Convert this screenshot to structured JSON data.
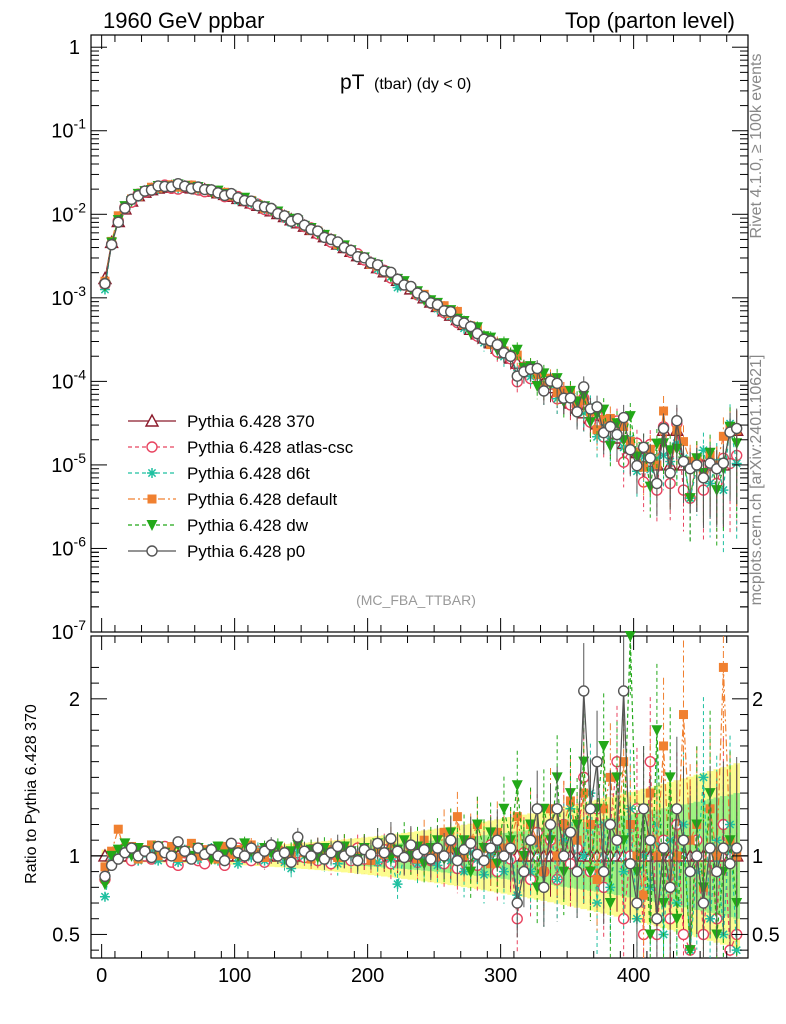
{
  "header": {
    "left": "1960 GeV ppbar",
    "right": "Top (parton level)"
  },
  "side": {
    "rivet": "Rivet 4.1.0, ≥ 100k events",
    "mcplots": "mcplots.cern.ch [arXiv:2401.10621]"
  },
  "chart_data": {
    "type": "line",
    "title_main": "pT",
    "title_sub": "(tbar) (dy < 0)",
    "analysis": "(MC_FBA_TTBAR)",
    "xlabel": "",
    "ylabel_ratio": "Ratio to Pythia 6.428 370",
    "xlim": [
      -8,
      486
    ],
    "xticks": [
      0,
      100,
      200,
      300,
      400
    ],
    "ylim_main": [
      1e-07,
      1.4
    ],
    "yticks_main": [
      "1",
      "10^-1",
      "10^-2",
      "10^-3",
      "10^-4",
      "10^-5",
      "10^-6",
      "10^-7"
    ],
    "ylim_ratio": [
      0.35,
      2.4
    ],
    "yticks_ratio": [
      0.5,
      1,
      2
    ],
    "reference_x": [
      2.5,
      7.5,
      12.5,
      17.5,
      22.5,
      27.5,
      32.5,
      37.5,
      42.5,
      47.5,
      52.5,
      57.5,
      62.5,
      67.5,
      72.5,
      77.5,
      82.5,
      87.5,
      92.5,
      97.5,
      102.5,
      107.5,
      112.5,
      117.5,
      122.5,
      127.5,
      132.5,
      137.5,
      142.5,
      147.5,
      152.5,
      157.5,
      162.5,
      167.5,
      172.5,
      177.5,
      182.5,
      187.5,
      192.5,
      197.5,
      202.5,
      207.5,
      212.5,
      217.5,
      222.5,
      227.5,
      232.5,
      237.5,
      242.5,
      247.5,
      252.5,
      257.5,
      262.5,
      267.5,
      272.5,
      277.5,
      282.5,
      287.5,
      292.5,
      297.5,
      302.5,
      307.5,
      312.5,
      317.5,
      322.5,
      327.5,
      332.5,
      337.5,
      342.5,
      347.5,
      352.5,
      357.5,
      362.5,
      367.5,
      372.5,
      377.5,
      382.5,
      387.5,
      392.5,
      397.5,
      402.5,
      407.5,
      412.5,
      417.5,
      422.5,
      427.5,
      432.5,
      437.5,
      442.5,
      447.5,
      452.5,
      457.5,
      462.5,
      467.5,
      472.5,
      477.5
    ],
    "reference_y": [
      0.0017,
      0.0046,
      0.0082,
      0.0116,
      0.0144,
      0.0167,
      0.0184,
      0.0197,
      0.0206,
      0.0211,
      0.0213,
      0.0213,
      0.0211,
      0.0207,
      0.0202,
      0.0196,
      0.0189,
      0.0181,
      0.0173,
      0.0164,
      0.0155,
      0.0146,
      0.0137,
      0.0128,
      0.0119,
      0.011,
      0.0102,
      0.0094,
      0.0086,
      0.0079,
      0.0072,
      0.0066,
      0.006,
      0.0054,
      0.0049,
      0.0044,
      0.004,
      0.0036,
      0.0032,
      0.0029,
      0.0026,
      0.0023,
      0.00205,
      0.00182,
      0.00162,
      0.00144,
      0.00128,
      0.00113,
      0.001,
      0.00089,
      0.00079,
      0.0007,
      0.00062,
      0.00055,
      0.00048,
      0.00042,
      0.00037,
      0.00033,
      0.00029,
      0.00025,
      0.00022,
      0.00019,
      0.000165,
      0.000145,
      0.000127,
      0.00011,
      9.6e-05,
      8.4e-05,
      7.3e-05,
      6.3e-05,
      5.5e-05,
      4.8e-05,
      4.2e-05,
      3.6e-05,
      3.1e-05,
      2.7e-05,
      2.4e-05,
      2.1e-05,
      1.8e-05,
      1.6e-05,
      1.4e-05,
      1.25e-05,
      1.1e-05,
      1e-05,
      2.6e-05,
      1e-05,
      2.6e-05,
      1e-05,
      1e-05,
      1e-05,
      1e-05,
      1e-05,
      1e-05,
      1e-05,
      2.6e-05,
      2.6e-05
    ],
    "series": [
      {
        "name": "Pythia 6.428 370",
        "color": "#8b1a2b",
        "dash": "",
        "marker": "open-triangle",
        "ratio": [
          1,
          1,
          1,
          1,
          1,
          1,
          1,
          1,
          1,
          1,
          1,
          1,
          1,
          1,
          1,
          1,
          1,
          1,
          1,
          1,
          1,
          1,
          1,
          1,
          1,
          1,
          1,
          1,
          1,
          1,
          1,
          1,
          1,
          1,
          1,
          1,
          1,
          1,
          1,
          1,
          1,
          1,
          1,
          1,
          1,
          1,
          1,
          1,
          1,
          1,
          1,
          1,
          1,
          1,
          1,
          1,
          1,
          1,
          1,
          1,
          1,
          1,
          1,
          1,
          1,
          1,
          1,
          1,
          1,
          1,
          1,
          1,
          1,
          1,
          1,
          1,
          1,
          1,
          1,
          1,
          1,
          1,
          1,
          1,
          1,
          1,
          1,
          1,
          1,
          1,
          1,
          1,
          1,
          1,
          1,
          1
        ]
      },
      {
        "name": "Pythia 6.428 atlas-csc",
        "color": "#e8435f",
        "dash": "4,3",
        "marker": "open-circle",
        "ratio": [
          0.85,
          0.95,
          1.02,
          1.05,
          0.97,
          1.04,
          1,
          0.98,
          1.03,
          1.06,
          0.96,
          0.94,
          1.02,
          1.05,
          0.97,
          0.95,
          1,
          1.03,
          0.94,
          1.02,
          1.05,
          0.99,
          0.97,
          1.03,
          0.96,
          1.01,
          1.04,
          0.98,
          0.97,
          1.02,
          0.99,
          1.04,
          0.97,
          1.01,
          0.95,
          1.03,
          1,
          0.97,
          1.05,
          0.98,
          1,
          0.97,
          1.04,
          0.95,
          1.02,
          0.99,
          1.06,
          0.96,
          1.03,
          0.97,
          1,
          0.95,
          1.08,
          0.92,
          1.02,
          1.05,
          0.94,
          1,
          1.07,
          0.9,
          1.03,
          0.98,
          0.6,
          1.02,
          0.85,
          1.15,
          0.9,
          1.1,
          0.85,
          1.2,
          0.95,
          1.05,
          1.5,
          0.9,
          1.3,
          0.8,
          1.2,
          1.6,
          0.6,
          1,
          1.3,
          0.5,
          1.6,
          0.5,
          1.1,
          0.6,
          1.2,
          0.5,
          0.4,
          1.1,
          0.5,
          1,
          0.6,
          1.2,
          0.4,
          0.5
        ]
      },
      {
        "name": "Pythia 6.428 d6t",
        "color": "#1fc0a0",
        "dash": "4,3",
        "marker": "star",
        "ratio": [
          0.74,
          0.97,
          1,
          1.03,
          1.01,
          0.97,
          1.02,
          1.05,
          0.97,
          1.03,
          1.01,
          0.96,
          1.04,
          1,
          0.98,
          1.02,
          1.05,
          0.97,
          1,
          1.03,
          0.95,
          1.02,
          0.99,
          1.04,
          0.97,
          1.01,
          1,
          0.96,
          0.92,
          1.03,
          1,
          0.98,
          1.04,
          0.97,
          1.01,
          0.95,
          1.03,
          1,
          0.97,
          1.02,
          0.99,
          0.96,
          1.03,
          0.98,
          0.82,
          1,
          1.03,
          0.95,
          0.98,
          1.02,
          0.94,
          1,
          0.97,
          1.04,
          0.9,
          1.02,
          0.98,
          0.88,
          1,
          1.05,
          0.9,
          1.1,
          0.75,
          1,
          0.9,
          1.1,
          0.8,
          1.2,
          0.85,
          1.1,
          1.3,
          0.9,
          1,
          1.4,
          0.7,
          1.2,
          0.8,
          1.1,
          0.9,
          1.3,
          0.6,
          1,
          0.8,
          1.2,
          0.5,
          1.1,
          0.7,
          1.2,
          0.4,
          0.9,
          1.5,
          0.6,
          1.1,
          0.5,
          1.2,
          0.4
        ]
      },
      {
        "name": "Pythia 6.428 default",
        "color": "#f08030",
        "dash": "7,3,2,3",
        "marker": "filled-square",
        "ratio": [
          0.93,
          1.03,
          1.17,
          1.02,
          1.06,
          0.98,
          1.04,
          1.07,
          1,
          1.03,
          1.06,
          0.99,
          1.02,
          1.08,
          1,
          1.04,
          1.02,
          0.98,
          1.06,
          1.01,
          1.04,
          1,
          1.07,
          1.02,
          0.99,
          1.05,
          1.01,
          1.03,
          1,
          1.08,
          1.02,
          0.98,
          1.05,
          1.01,
          1.04,
          0.99,
          1.06,
          1.02,
          1,
          1.05,
          0.97,
          1.04,
          1.01,
          1.08,
          1.02,
          1,
          1.05,
          0.98,
          1.1,
          1.03,
          1,
          1.15,
          1.05,
          1.25,
          1,
          1.1,
          1.2,
          1.05,
          0.95,
          1.15,
          1.05,
          1.1,
          1.25,
          1,
          1.2,
          1.1,
          0.9,
          1.3,
          1,
          1.2,
          1.35,
          1.1,
          1.4,
          1.2,
          0.85,
          1.3,
          1.5,
          1.1,
          1.6,
          1.2,
          1,
          0.75,
          1.4,
          1,
          1.7,
          0.8,
          1,
          1.9,
          1.1,
          1.2,
          0.8,
          1.3,
          1,
          2.2,
          1.1,
          1
        ]
      },
      {
        "name": "Pythia 6.428 dw",
        "color": "#22a818",
        "dash": "4,3",
        "marker": "filled-triangle-down",
        "ratio": [
          0.82,
          1,
          1.04,
          1.08,
          1,
          1.05,
          1.03,
          0.99,
          1.06,
          1.02,
          1,
          1.07,
          1.03,
          1,
          1.05,
          1.02,
          0.98,
          1.06,
          1.01,
          1.04,
          1,
          1.08,
          1.03,
          0.99,
          1.05,
          1.02,
          1.06,
          1,
          1.03,
          1.07,
          1.01,
          1.04,
          0.99,
          1.05,
          1.02,
          1,
          1.06,
          1.03,
          0.98,
          1.05,
          1.01,
          1.08,
          1.02,
          0.99,
          1.04,
          1.1,
          1,
          1.06,
          0.95,
          1.05,
          1.1,
          0.98,
          1.15,
          1.02,
          1.1,
          0.9,
          1.2,
          1.05,
          1.15,
          0.95,
          1.3,
          1.1,
          1.45,
          1,
          1.2,
          0.8,
          1.3,
          1.1,
          1.5,
          0.9,
          1.4,
          1.2,
          1.6,
          0.9,
          1.3,
          1.7,
          0.7,
          1.5,
          1.1,
          2.4,
          0.9,
          1.3,
          0.5,
          1.8,
          0.7,
          1.5,
          0.6,
          1.1,
          0.4,
          1.2,
          0.8,
          1.4,
          0.5,
          0.9,
          1.1,
          0.7
        ]
      },
      {
        "name": "Pythia 6.428 p0",
        "color": "#555555",
        "dash": "",
        "marker": "open-circle",
        "ratio": [
          0.87,
          0.94,
          0.98,
          1.02,
          1.05,
          1,
          1.03,
          0.99,
          1.06,
          1.02,
          1,
          1.09,
          1.03,
          0.98,
          1.05,
          1.01,
          1.04,
          1,
          0.97,
          1.08,
          1.02,
          1,
          1.05,
          0.99,
          1.03,
          1.07,
          1,
          1.02,
          0.96,
          1.12,
          1.03,
          1,
          1.05,
          0.98,
          1.02,
          1.06,
          1,
          1.03,
          0.97,
          1.04,
          1.01,
          1.08,
          1.02,
          1.11,
          1.03,
          0.99,
          1.07,
          1.01,
          1.04,
          0.98,
          1.05,
          1,
          1.1,
          0.97,
          1.04,
          1.08,
          1.01,
          0.97,
          1.05,
          1.1,
          1,
          1.05,
          0.7,
          0.9,
          1.1,
          1.3,
          0.8,
          1.2,
          1.3,
          1,
          1.15,
          0.9,
          2.05,
          1.3,
          1.6,
          0.9,
          1.2,
          1.1,
          2.05,
          0.95,
          0.7,
          1.3,
          1.1,
          0.6,
          1.05,
          0.8,
          1.3,
          1.1,
          0.9,
          1,
          0.7,
          1.05,
          0.9,
          1.05,
          0.95,
          1.05
        ]
      }
    ]
  }
}
